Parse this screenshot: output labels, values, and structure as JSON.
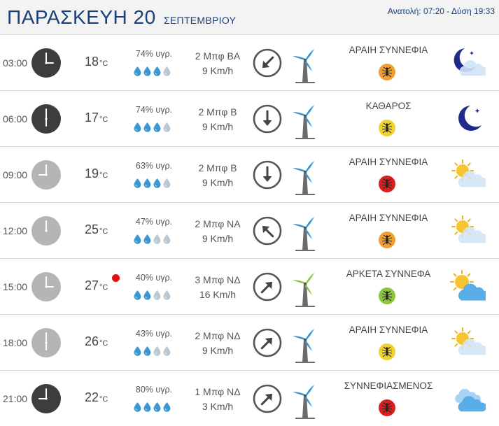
{
  "header": {
    "day": "ΠΑΡΑΣΚΕΥΗ 20",
    "month": "ΣΕΠΤΕΜΒΡΙΟΥ",
    "sun_times": "Ανατολή: 07:20 - Δύση 19:33"
  },
  "colors": {
    "accent": "#1a3f7a",
    "wind_blade_low": "#3a97d4",
    "wind_blade_moderate": "#8cc63f",
    "mosquito_orange": "#f0a030",
    "mosquito_yellow": "#f2d22e",
    "mosquito_red": "#d81e1e",
    "mosquito_green": "#8cc63f",
    "max_temp_dot": "#e01010"
  },
  "rows": [
    {
      "time": "03:00",
      "clock": "night",
      "temp": "18",
      "unit": "°C",
      "humidity": "74% υγρ.",
      "drops_filled": 3,
      "wind_beaufort": "2 Μπφ ΒΑ",
      "wind_speed": "9 Km/h",
      "arrow_icon": "arrow-southwest-icon",
      "condition": "ΑΡΑΙΗ ΣΥΝΝΕΦΙΑ",
      "mosquito_level": "orange",
      "weather_icon": "moon-cloud-icon",
      "max_temp": false
    },
    {
      "time": "06:00",
      "clock": "night",
      "temp": "17",
      "unit": "°C",
      "humidity": "74% υγρ.",
      "drops_filled": 3,
      "wind_beaufort": "2 Μπφ Β",
      "wind_speed": "9 Km/h",
      "arrow_icon": "arrow-south-icon",
      "condition": "ΚΑΘΑΡΟΣ",
      "mosquito_level": "yellow",
      "weather_icon": "moon-icon",
      "max_temp": false
    },
    {
      "time": "09:00",
      "clock": "day",
      "temp": "19",
      "unit": "°C",
      "humidity": "63% υγρ.",
      "drops_filled": 3,
      "wind_beaufort": "2 Μπφ Β",
      "wind_speed": "9 Km/h",
      "arrow_icon": "arrow-south-icon",
      "condition": "ΑΡΑΙΗ ΣΥΝΝΕΦΙΑ",
      "mosquito_level": "red",
      "weather_icon": "sun-cloud-icon",
      "max_temp": false
    },
    {
      "time": "12:00",
      "clock": "day",
      "temp": "25",
      "unit": "°C",
      "humidity": "47% υγρ.",
      "drops_filled": 2,
      "wind_beaufort": "2 Μπφ ΝΑ",
      "wind_speed": "9 Km/h",
      "arrow_icon": "arrow-northwest-icon",
      "condition": "ΑΡΑΙΗ ΣΥΝΝΕΦΙΑ",
      "mosquito_level": "orange",
      "weather_icon": "sun-cloud-icon",
      "max_temp": false
    },
    {
      "time": "15:00",
      "clock": "day",
      "temp": "27",
      "unit": "°C",
      "humidity": "40% υγρ.",
      "drops_filled": 2,
      "wind_beaufort": "3 Μπφ ΝΔ",
      "wind_speed": "16 Km/h",
      "arrow_icon": "arrow-northeast-icon",
      "condition": "ΑΡΚΕΤΑ ΣΥΝΝΕΦΑ",
      "mosquito_level": "green",
      "weather_icon": "sun-big-cloud-icon",
      "max_temp": true
    },
    {
      "time": "18:00",
      "clock": "day",
      "temp": "26",
      "unit": "°C",
      "humidity": "43% υγρ.",
      "drops_filled": 2,
      "wind_beaufort": "2 Μπφ ΝΔ",
      "wind_speed": "9 Km/h",
      "arrow_icon": "arrow-northeast-icon",
      "condition": "ΑΡΑΙΗ ΣΥΝΝΕΦΙΑ",
      "mosquito_level": "yellow",
      "weather_icon": "sun-cloud-icon",
      "max_temp": false
    },
    {
      "time": "21:00",
      "clock": "night",
      "temp": "22",
      "unit": "°C",
      "humidity": "80% υγρ.",
      "drops_filled": 4,
      "wind_beaufort": "1 Μπφ ΝΔ",
      "wind_speed": "3 Km/h",
      "arrow_icon": "arrow-northeast-icon",
      "condition": "ΣΥΝΝΕΦΙΑΣΜΕΝΟΣ",
      "mosquito_level": "red",
      "weather_icon": "cloud-icon",
      "max_temp": false
    }
  ]
}
